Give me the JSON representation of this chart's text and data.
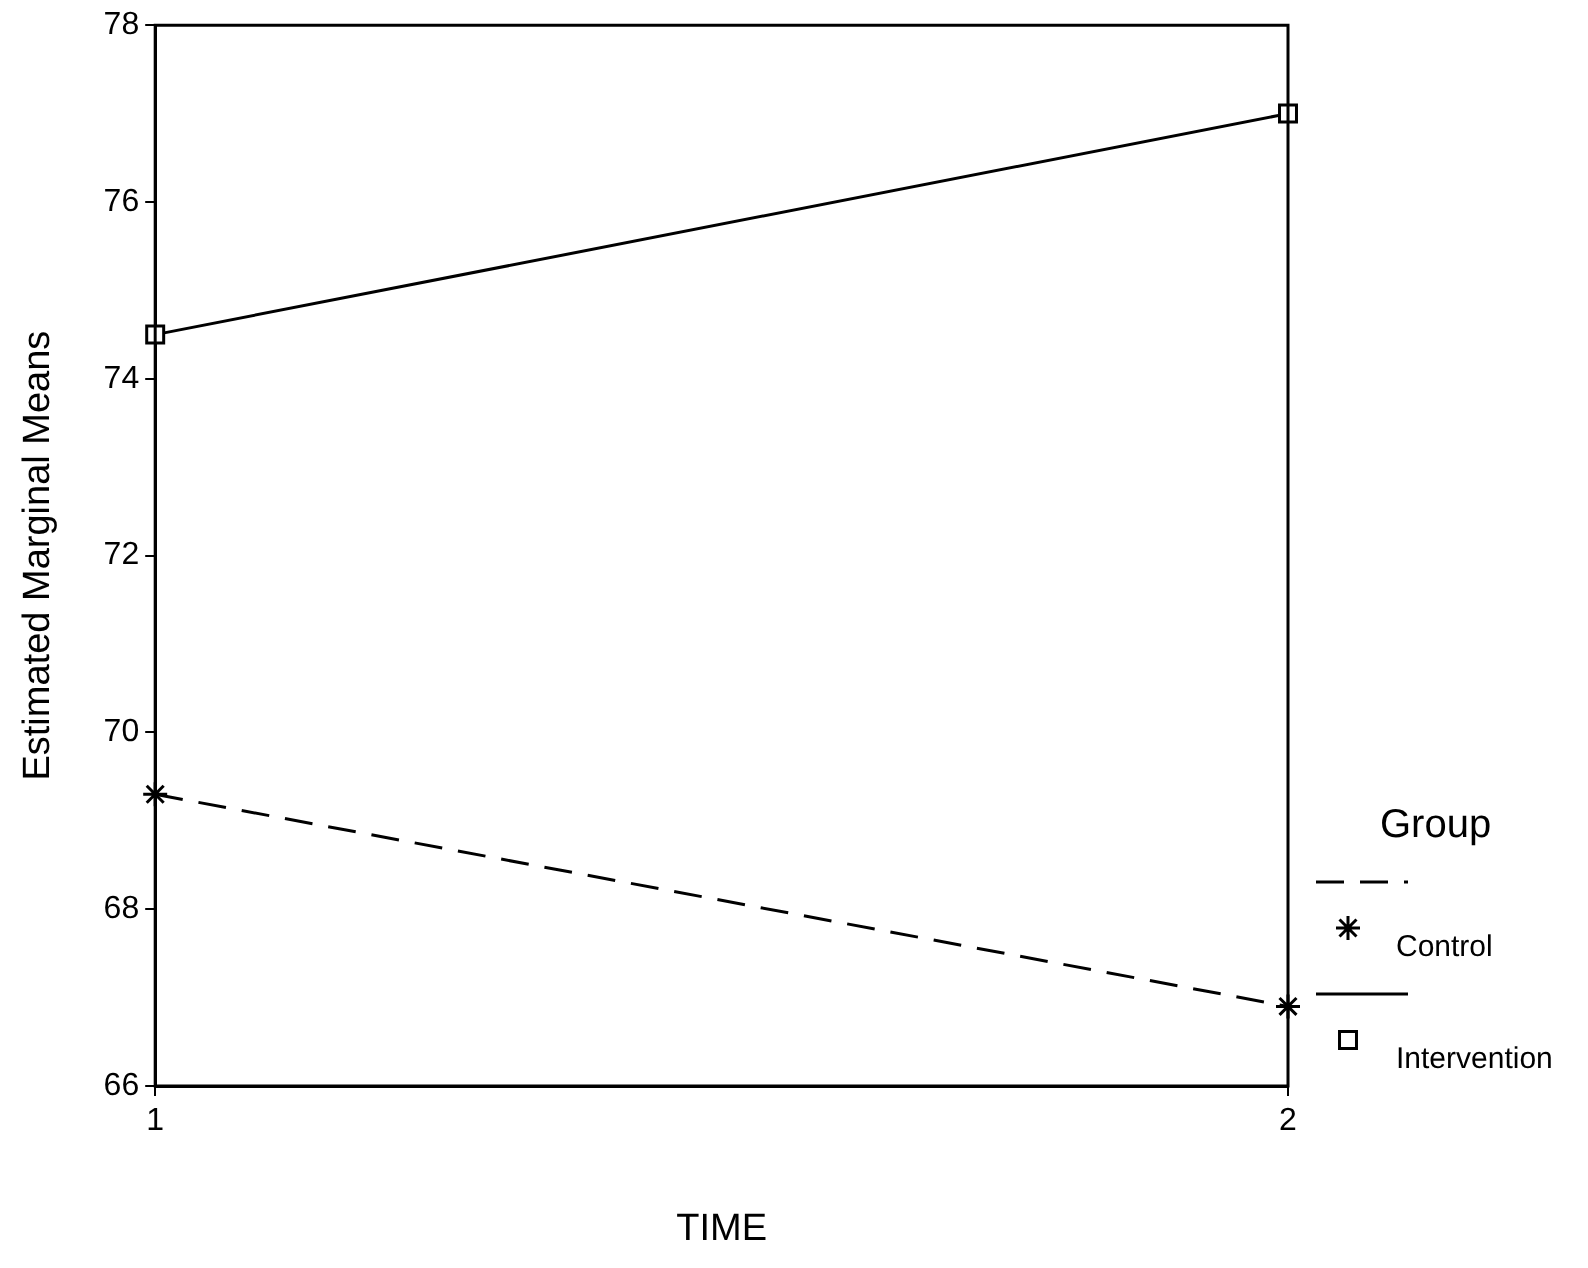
{
  "chart_data": {
    "type": "line",
    "xlabel": "TIME",
    "ylabel": "Estimated Marginal Means",
    "legend_title": "Group",
    "x": [
      1,
      2
    ],
    "xlim": [
      1,
      2
    ],
    "xticks": [
      1,
      2
    ],
    "ylim": [
      66,
      78
    ],
    "yticks": [
      66,
      68,
      70,
      72,
      74,
      76,
      78
    ],
    "grid": false,
    "legend": "right",
    "series": [
      {
        "name": "Control",
        "color": "#000000",
        "values": [
          69.3,
          66.9
        ],
        "marker": "cross",
        "line_style": "dashed"
      },
      {
        "name": "Intervention",
        "color": "#000000",
        "values": [
          74.5,
          77.0
        ],
        "marker": "square",
        "line_style": "solid"
      }
    ]
  }
}
